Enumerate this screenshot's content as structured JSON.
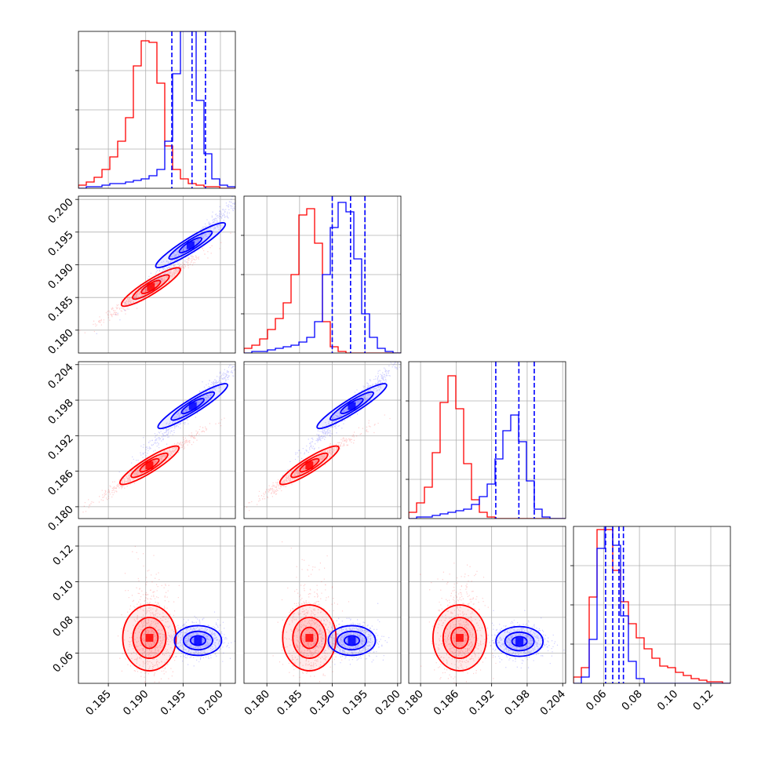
{
  "chart_data": {
    "type": "corner",
    "grid": true,
    "series": [
      {
        "name": "",
        "color": "#ff0000"
      },
      {
        "name": "",
        "color": "#0000ff"
      }
    ],
    "params": [
      {
        "range": [
          0.181,
          0.202
        ],
        "ticks": [
          0.185,
          0.19,
          0.195,
          0.2
        ],
        "labels": [
          "0.185",
          "0.190",
          "0.195",
          "0.200"
        ]
      },
      {
        "range": [
          0.1765,
          0.2005
        ],
        "ticks": [
          0.18,
          0.185,
          0.19,
          0.195,
          0.2
        ],
        "labels": [
          "0.180",
          "0.185",
          "0.190",
          "0.195",
          "0.200"
        ]
      },
      {
        "range": [
          0.178,
          0.2045
        ],
        "ticks": [
          0.18,
          0.186,
          0.192,
          0.198,
          0.204
        ],
        "labels": [
          "0.180",
          "0.186",
          "0.192",
          "0.198",
          "0.204"
        ]
      },
      {
        "range": [
          0.043,
          0.131
        ],
        "ticks": [
          0.06,
          0.08,
          0.1,
          0.12
        ],
        "labels": [
          "0.06",
          "0.08",
          "0.10",
          "0.12"
        ]
      }
    ],
    "quantiles_blue": [
      [
        0.1935,
        0.1962,
        0.198
      ],
      [
        0.19,
        0.1928,
        0.195
      ],
      [
        0.1927,
        0.1966,
        0.1992
      ],
      [
        0.061,
        0.065,
        0.0685,
        0.071
      ]
    ],
    "centers_red": [
      [
        0.1907,
        0.1866
      ],
      [
        0.1905,
        0.187
      ],
      [
        0.1865,
        0.187
      ],
      [
        0.1905,
        0.0685
      ],
      [
        0.1865,
        0.0685
      ],
      [
        0.1866,
        0.0685
      ]
    ],
    "centers_blue": [
      [
        0.196,
        0.193
      ],
      [
        0.1963,
        0.197
      ],
      [
        0.193,
        0.197
      ],
      [
        0.197,
        0.067
      ],
      [
        0.193,
        0.067
      ],
      [
        0.1967,
        0.0665
      ]
    ],
    "histograms": [
      {
        "edges": [
          0.181,
          0.202,
          20
        ],
        "red": [
          2,
          4,
          7,
          12,
          20,
          30,
          45,
          78,
          94,
          93,
          67,
          27,
          12,
          6,
          3,
          2,
          1,
          1,
          0,
          0
        ],
        "blue": [
          0,
          1,
          1,
          2,
          3,
          3,
          4,
          5,
          6,
          8,
          12,
          30,
          73,
          100,
          100,
          56,
          22,
          6,
          2,
          1
        ]
      },
      {
        "edges": [
          0.1765,
          0.2005,
          20
        ],
        "red": [
          3,
          5,
          9,
          15,
          22,
          32,
          50,
          88,
          92,
          70,
          20,
          4,
          1,
          0,
          0,
          0,
          0,
          0,
          0,
          0
        ],
        "blue": [
          0,
          1,
          1,
          2,
          3,
          4,
          5,
          7,
          10,
          20,
          50,
          80,
          96,
          90,
          60,
          25,
          10,
          3,
          1,
          0
        ]
      },
      {
        "edges": [
          0.178,
          0.2045,
          20
        ],
        "red": [
          4,
          10,
          20,
          42,
          74,
          91,
          70,
          35,
          12,
          4,
          1,
          0,
          0,
          0,
          0,
          0,
          0,
          0,
          0,
          0
        ],
        "blue": [
          0,
          1,
          1,
          2,
          3,
          4,
          5,
          6,
          9,
          14,
          22,
          38,
          56,
          66,
          49,
          24,
          6,
          1,
          0,
          0
        ]
      },
      {
        "edges": [
          0.043,
          0.131,
          20
        ],
        "red": [
          4,
          10,
          55,
          98,
          98,
          72,
          52,
          38,
          29,
          22,
          16,
          11,
          10,
          7,
          5,
          3,
          2,
          1,
          1,
          0
        ],
        "blue": [
          0,
          4,
          28,
          86,
          100,
          88,
          43,
          14,
          3,
          0,
          0,
          0,
          0,
          0,
          0,
          0,
          0,
          0,
          0,
          0
        ]
      }
    ]
  }
}
